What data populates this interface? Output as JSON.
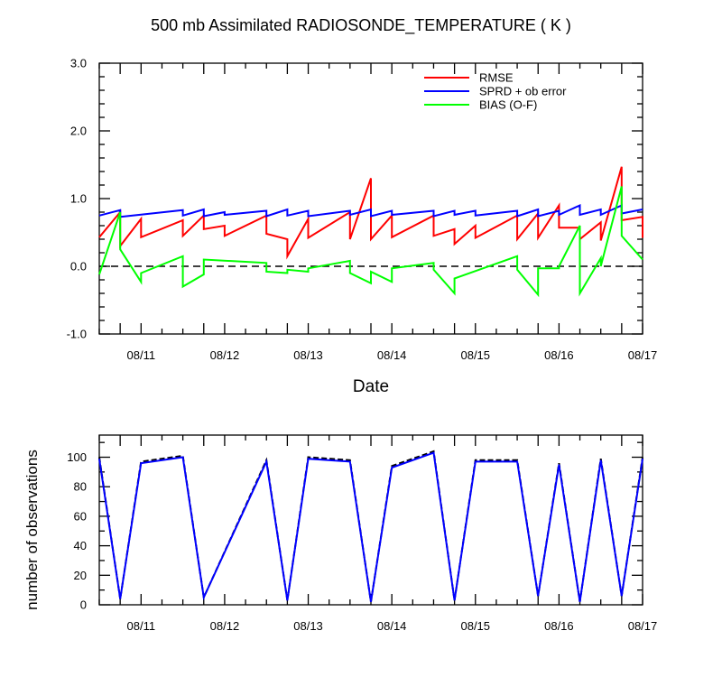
{
  "chart_data": [
    {
      "type": "line",
      "title": "500 mb Assimilated RADIOSONDE_TEMPERATURE ( K )",
      "xlabel": "Date",
      "ylabel": "",
      "xlim": [
        "08/10 12:00",
        "08/17 00:00"
      ],
      "ylim": [
        -1.0,
        3.0
      ],
      "x_ticks": [
        "08/11",
        "08/12",
        "08/13",
        "08/14",
        "08/15",
        "08/16",
        "08/17"
      ],
      "y_ticks": [
        "-1.0",
        "0.0",
        "1.0",
        "2.0",
        "3.0"
      ],
      "legend_position": "top-right",
      "reference_line": {
        "y": 0.0,
        "style": "dashed",
        "color": "#000000"
      },
      "series": [
        {
          "name": "RMSE",
          "color": "#ff0000",
          "points": [
            [
              "08/10 12:00",
              0.43
            ],
            [
              "08/10 18:00",
              0.8
            ],
            [
              "08/10 18:00",
              0.3
            ],
            [
              "08/11 00:00",
              0.7
            ],
            [
              "08/11 00:00",
              0.43
            ],
            [
              "08/11 12:00",
              0.68
            ],
            [
              "08/11 12:00",
              0.45
            ],
            [
              "08/11 18:00",
              0.75
            ],
            [
              "08/11 18:00",
              0.55
            ],
            [
              "08/12 00:00",
              0.6
            ],
            [
              "08/12 00:00",
              0.45
            ],
            [
              "08/12 12:00",
              0.75
            ],
            [
              "08/12 12:00",
              0.48
            ],
            [
              "08/12 18:00",
              0.4
            ],
            [
              "08/12 18:00",
              0.15
            ],
            [
              "08/13 00:00",
              0.7
            ],
            [
              "08/13 00:00",
              0.42
            ],
            [
              "08/13 12:00",
              0.8
            ],
            [
              "08/13 12:00",
              0.4
            ],
            [
              "08/13 18:00",
              1.3
            ],
            [
              "08/13 18:00",
              0.4
            ],
            [
              "08/14 00:00",
              0.75
            ],
            [
              "08/14 00:00",
              0.43
            ],
            [
              "08/14 12:00",
              0.75
            ],
            [
              "08/14 12:00",
              0.45
            ],
            [
              "08/14 18:00",
              0.55
            ],
            [
              "08/14 18:00",
              0.33
            ],
            [
              "08/15 00:00",
              0.6
            ],
            [
              "08/15 00:00",
              0.42
            ],
            [
              "08/15 12:00",
              0.75
            ],
            [
              "08/15 12:00",
              0.4
            ],
            [
              "08/15 18:00",
              0.78
            ],
            [
              "08/15 18:00",
              0.42
            ],
            [
              "08/16 00:00",
              0.9
            ],
            [
              "08/16 00:00",
              0.57
            ],
            [
              "08/16 06:00",
              0.57
            ],
            [
              "08/16 06:00",
              0.4
            ],
            [
              "08/16 12:00",
              0.65
            ],
            [
              "08/16 12:00",
              0.38
            ],
            [
              "08/16 18:00",
              1.47
            ],
            [
              "08/16 18:00",
              0.68
            ],
            [
              "08/17 00:00",
              0.73
            ],
            [
              "08/17 00:00",
              0.42
            ]
          ]
        },
        {
          "name": "SPRD + ob error",
          "color": "#0000ff",
          "points": [
            [
              "08/10 12:00",
              0.75
            ],
            [
              "08/10 18:00",
              0.83
            ],
            [
              "08/10 18:00",
              0.73
            ],
            [
              "08/11 12:00",
              0.83
            ],
            [
              "08/11 12:00",
              0.75
            ],
            [
              "08/11 18:00",
              0.84
            ],
            [
              "08/11 18:00",
              0.74
            ],
            [
              "08/12 00:00",
              0.8
            ],
            [
              "08/12 00:00",
              0.76
            ],
            [
              "08/12 12:00",
              0.82
            ],
            [
              "08/12 12:00",
              0.74
            ],
            [
              "08/12 18:00",
              0.84
            ],
            [
              "08/12 18:00",
              0.75
            ],
            [
              "08/13 00:00",
              0.82
            ],
            [
              "08/13 00:00",
              0.74
            ],
            [
              "08/13 12:00",
              0.82
            ],
            [
              "08/13 12:00",
              0.76
            ],
            [
              "08/13 18:00",
              0.84
            ],
            [
              "08/13 18:00",
              0.74
            ],
            [
              "08/14 00:00",
              0.82
            ],
            [
              "08/14 00:00",
              0.76
            ],
            [
              "08/14 12:00",
              0.82
            ],
            [
              "08/14 12:00",
              0.74
            ],
            [
              "08/14 18:00",
              0.82
            ],
            [
              "08/14 18:00",
              0.76
            ],
            [
              "08/15 00:00",
              0.82
            ],
            [
              "08/15 00:00",
              0.75
            ],
            [
              "08/15 12:00",
              0.82
            ],
            [
              "08/15 12:00",
              0.74
            ],
            [
              "08/15 18:00",
              0.84
            ],
            [
              "08/15 18:00",
              0.74
            ],
            [
              "08/16 00:00",
              0.82
            ],
            [
              "08/16 00:00",
              0.76
            ],
            [
              "08/16 06:00",
              0.9
            ],
            [
              "08/16 06:00",
              0.76
            ],
            [
              "08/16 12:00",
              0.84
            ],
            [
              "08/16 12:00",
              0.76
            ],
            [
              "08/16 18:00",
              0.9
            ],
            [
              "08/16 18:00",
              0.78
            ],
            [
              "08/17 00:00",
              0.84
            ]
          ]
        },
        {
          "name": "BIAS (O-F)",
          "color": "#00ff00",
          "points": [
            [
              "08/10 12:00",
              -0.12
            ],
            [
              "08/10 18:00",
              0.8
            ],
            [
              "08/10 18:00",
              0.25
            ],
            [
              "08/11 00:00",
              -0.23
            ],
            [
              "08/11 00:00",
              -0.1
            ],
            [
              "08/11 12:00",
              0.15
            ],
            [
              "08/11 12:00",
              -0.3
            ],
            [
              "08/11 18:00",
              -0.12
            ],
            [
              "08/11 18:00",
              0.1
            ],
            [
              "08/12 12:00",
              0.05
            ],
            [
              "08/12 12:00",
              -0.08
            ],
            [
              "08/12 18:00",
              -0.1
            ],
            [
              "08/12 18:00",
              -0.05
            ],
            [
              "08/13 00:00",
              -0.08
            ],
            [
              "08/13 00:00",
              -0.03
            ],
            [
              "08/13 12:00",
              0.08
            ],
            [
              "08/13 12:00",
              -0.1
            ],
            [
              "08/13 18:00",
              -0.25
            ],
            [
              "08/13 18:00",
              -0.08
            ],
            [
              "08/14 00:00",
              -0.23
            ],
            [
              "08/14 00:00",
              -0.03
            ],
            [
              "08/14 12:00",
              0.05
            ],
            [
              "08/14 12:00",
              -0.05
            ],
            [
              "08/14 18:00",
              -0.4
            ],
            [
              "08/14 18:00",
              -0.18
            ],
            [
              "08/15 12:00",
              0.15
            ],
            [
              "08/15 12:00",
              -0.05
            ],
            [
              "08/15 18:00",
              -0.42
            ],
            [
              "08/15 18:00",
              -0.03
            ],
            [
              "08/16 00:00",
              -0.03
            ],
            [
              "08/16 00:00",
              0.0
            ],
            [
              "08/16 06:00",
              0.6
            ],
            [
              "08/16 06:00",
              -0.4
            ],
            [
              "08/16 12:00",
              0.12
            ],
            [
              "08/16 12:00",
              0.0
            ],
            [
              "08/16 18:00",
              1.18
            ],
            [
              "08/16 18:00",
              0.45
            ],
            [
              "08/17 00:00",
              0.1
            ]
          ]
        }
      ]
    },
    {
      "type": "line",
      "title": "",
      "xlabel": "",
      "ylabel": "number of observations",
      "xlim": [
        "08/10 12:00",
        "08/17 00:00"
      ],
      "ylim": [
        0,
        115
      ],
      "x_ticks": [
        "08/11",
        "08/12",
        "08/13",
        "08/14",
        "08/15",
        "08/16",
        "08/17"
      ],
      "y_ticks": [
        "0",
        "20",
        "40",
        "60",
        "80",
        "100"
      ],
      "series": [
        {
          "color": "#000000",
          "dashed": true,
          "points": [
            [
              "08/10 12:00",
              100
            ],
            [
              "08/10 18:00",
              4
            ],
            [
              "08/11 00:00",
              97
            ],
            [
              "08/11 12:00",
              101
            ],
            [
              "08/11 18:00",
              5
            ],
            [
              "08/12 12:00",
              98
            ],
            [
              "08/12 18:00",
              3
            ],
            [
              "08/13 00:00",
              100
            ],
            [
              "08/13 12:00",
              98
            ],
            [
              "08/13 18:00",
              2
            ],
            [
              "08/14 00:00",
              94
            ],
            [
              "08/14 12:00",
              104
            ],
            [
              "08/14 18:00",
              3
            ],
            [
              "08/15 00:00",
              98
            ],
            [
              "08/15 12:00",
              98
            ],
            [
              "08/15 18:00",
              6
            ],
            [
              "08/16 00:00",
              96
            ],
            [
              "08/16 06:00",
              2
            ],
            [
              "08/16 12:00",
              99
            ],
            [
              "08/16 18:00",
              6
            ],
            [
              "08/17 00:00",
              100
            ]
          ]
        },
        {
          "color": "#0000ff",
          "dashed": false,
          "points": [
            [
              "08/10 12:00",
              99
            ],
            [
              "08/10 18:00",
              4
            ],
            [
              "08/11 00:00",
              96
            ],
            [
              "08/11 12:00",
              100
            ],
            [
              "08/11 18:00",
              5
            ],
            [
              "08/12 12:00",
              97
            ],
            [
              "08/12 18:00",
              3
            ],
            [
              "08/13 00:00",
              99
            ],
            [
              "08/13 12:00",
              97
            ],
            [
              "08/13 18:00",
              2
            ],
            [
              "08/14 00:00",
              93
            ],
            [
              "08/14 12:00",
              103
            ],
            [
              "08/14 18:00",
              3
            ],
            [
              "08/15 00:00",
              97
            ],
            [
              "08/15 12:00",
              97
            ],
            [
              "08/15 18:00",
              6
            ],
            [
              "08/16 00:00",
              95
            ],
            [
              "08/16 06:00",
              2
            ],
            [
              "08/16 12:00",
              98
            ],
            [
              "08/16 18:00",
              6
            ],
            [
              "08/17 00:00",
              99
            ]
          ]
        }
      ]
    }
  ]
}
